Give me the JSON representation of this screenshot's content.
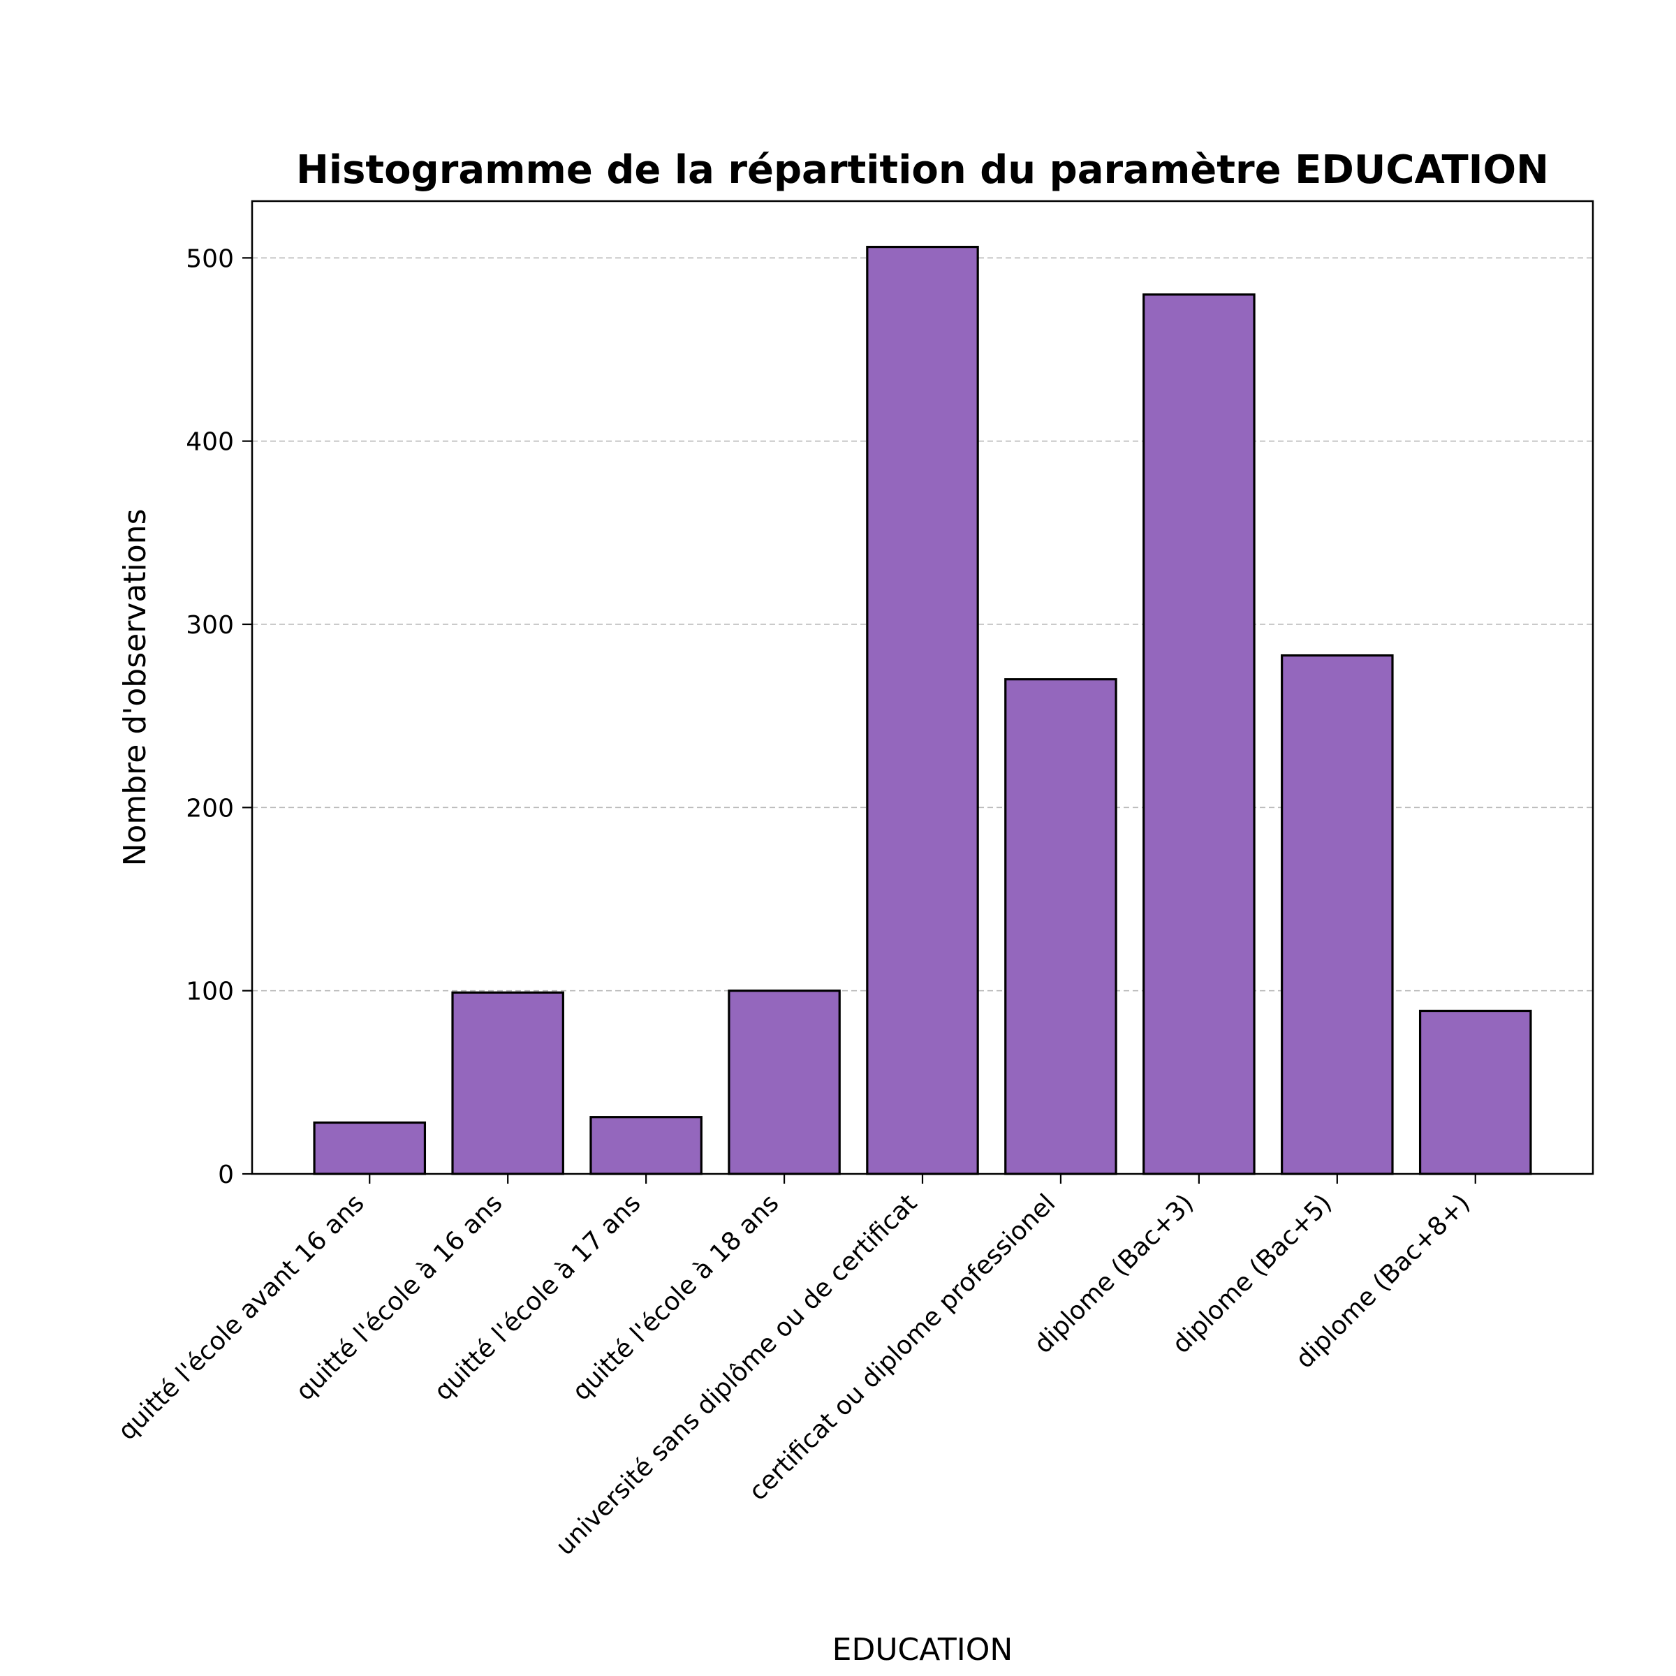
{
  "chart_data": {
    "type": "bar",
    "title": "Histogramme de la répartition du paramètre EDUCATION",
    "xlabel": "EDUCATION",
    "ylabel": "Nombre d'observations",
    "categories": [
      "quitté l'école avant 16 ans",
      "quitté l'école à 16 ans",
      "quitté l'école à 17 ans",
      "quitté l'école à 18 ans",
      "université sans diplôme ou de certificat",
      "certificat ou diplome professionel",
      "diplome (Bac+3)",
      "diplome (Bac+5)",
      "diplome (Bac+8+)"
    ],
    "values": [
      28,
      99,
      31,
      100,
      506,
      270,
      480,
      283,
      89
    ],
    "ylim": [
      0,
      531
    ],
    "yticks": [
      0,
      100,
      200,
      300,
      400,
      500
    ],
    "grid": "y",
    "bar_color": "#9467bd",
    "edge_color": "#000000",
    "tick_label_rotation": "45"
  }
}
